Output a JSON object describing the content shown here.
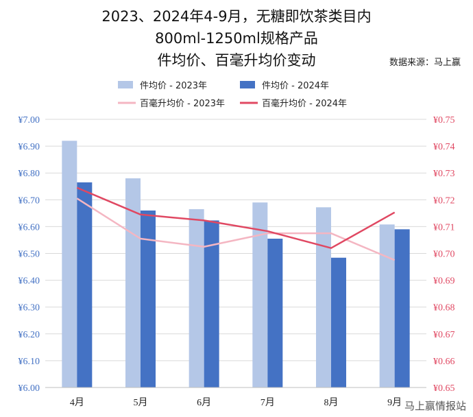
{
  "chart_data": {
    "type": "bar+line",
    "title_lines": [
      "2023、2024年4-9月，无糖即饮茶类目内",
      "800ml-1250ml规格产品",
      "件均价、百毫升均价变动"
    ],
    "source": "数据来源：马上赢",
    "categories": [
      "4月",
      "5月",
      "6月",
      "7月",
      "8月",
      "9月"
    ],
    "y_left": {
      "min": 6.0,
      "max": 7.0,
      "step": 0.1,
      "prefix": "¥",
      "decimals": 2,
      "ticks": [
        "¥6.00",
        "¥6.10",
        "¥6.20",
        "¥6.30",
        "¥6.40",
        "¥6.50",
        "¥6.60",
        "¥6.70",
        "¥6.80",
        "¥6.90",
        "¥7.00"
      ]
    },
    "y_right": {
      "min": 0.65,
      "max": 0.75,
      "step": 0.01,
      "prefix": "¥",
      "decimals": 2,
      "ticks": [
        "¥0.65",
        "¥0.66",
        "¥0.67",
        "¥0.68",
        "¥0.69",
        "¥0.70",
        "¥0.71",
        "¥0.72",
        "¥0.73",
        "¥0.74",
        "¥0.75"
      ]
    },
    "bar_series": [
      {
        "name": "件均价 - 2023年",
        "color": "#b4c7e7",
        "values": [
          6.92,
          6.78,
          6.665,
          6.69,
          6.672,
          6.608
        ]
      },
      {
        "name": "件均价 - 2024年",
        "color": "#4472c4",
        "values": [
          6.765,
          6.66,
          6.623,
          6.555,
          6.484,
          6.59
        ]
      }
    ],
    "line_series": [
      {
        "name": "百毫升均价 - 2023年",
        "color": "#f4b6c2",
        "values": [
          0.7205,
          0.7055,
          0.7025,
          0.7075,
          0.7075,
          0.6975
        ]
      },
      {
        "name": "百毫升均价 - 2024年",
        "color": "#e04862",
        "values": [
          0.7245,
          0.7145,
          0.7123,
          0.7083,
          0.702,
          0.7153
        ]
      }
    ],
    "grid": true,
    "legend_position": "top",
    "left_axis_color": "#4472c4",
    "right_axis_color": "#e04862"
  },
  "watermark": "马上赢情报站"
}
